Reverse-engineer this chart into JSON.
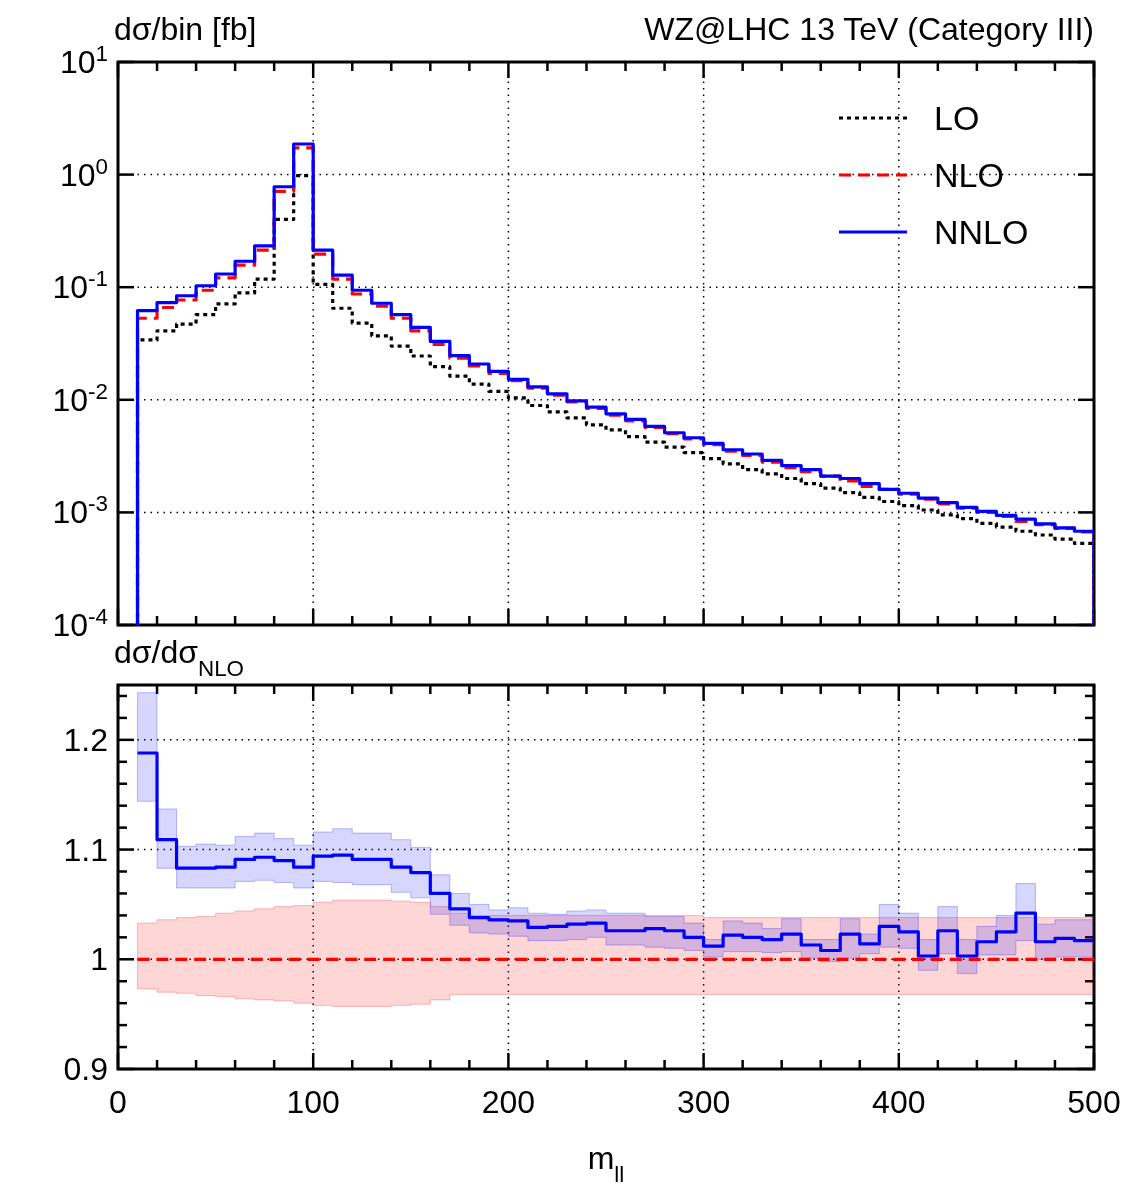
{
  "chart_data": [
    {
      "type": "histogram",
      "title": "WZ@LHC 13 TeV (Category III)",
      "ylabel": "dσ/bin [fb]",
      "log": "y",
      "grid": true,
      "legend": "top right",
      "tick_labels": "y",
      "bins": [
        10,
        20,
        30,
        40,
        50,
        60,
        70,
        80,
        90,
        100,
        110,
        120,
        130,
        140,
        150,
        160,
        170,
        180,
        190,
        200,
        210,
        220,
        230,
        240,
        250,
        260,
        270,
        280,
        290,
        300,
        310,
        320,
        330,
        340,
        350,
        360,
        370,
        380,
        390,
        400,
        410,
        420,
        430,
        440,
        450,
        460,
        470,
        480,
        490,
        500
      ],
      "xlim": [
        0,
        500
      ],
      "xticks": [
        0,
        {
          "value": 20,
          "label": null
        },
        {
          "value": 40,
          "label": null
        },
        {
          "value": 60,
          "label": null
        },
        {
          "value": 80,
          "label": null
        },
        100,
        {
          "value": 120,
          "label": null
        },
        {
          "value": 140,
          "label": null
        },
        {
          "value": 160,
          "label": null
        },
        {
          "value": 180,
          "label": null
        },
        200,
        {
          "value": 220,
          "label": null
        },
        {
          "value": 240,
          "label": null
        },
        {
          "value": 260,
          "label": null
        },
        {
          "value": 280,
          "label": null
        },
        300,
        {
          "value": 320,
          "label": null
        },
        {
          "value": 340,
          "label": null
        },
        {
          "value": 360,
          "label": null
        },
        {
          "value": 380,
          "label": null
        },
        400,
        {
          "value": 420,
          "label": null
        },
        {
          "value": 440,
          "label": null
        },
        {
          "value": 460,
          "label": null
        },
        {
          "value": 480,
          "label": null
        },
        500
      ],
      "ylim": [
        0.0001,
        10
      ],
      "yticks": [
        {
          "value": 0.0001,
          "label": "10$^{-4}$"
        },
        {
          "value": 0.001,
          "label": "10$^{-3}$"
        },
        {
          "value": 0.01,
          "label": "10$^{-2}$"
        },
        {
          "value": 0.1,
          "label": "10$^{-1}$"
        },
        {
          "value": 1,
          "label": "10$^{0}$"
        },
        {
          "value": 10,
          "label": "10$^{1}$"
        }
      ],
      "series": [
        {
          "name": "LO",
          "color": "#000000",
          "line_style": "dotted",
          "values": [
            0.034,
            0.041,
            0.047,
            0.057,
            0.071,
            0.089,
            0.118,
            0.4,
            0.98,
            0.106,
            0.065,
            0.048,
            0.037,
            0.03,
            0.0245,
            0.0197,
            0.0162,
            0.0138,
            0.0119,
            0.0104,
            0.0089,
            0.0078,
            0.0069,
            0.006,
            0.0054,
            0.0047,
            0.0042,
            0.0038,
            0.0034,
            0.003,
            0.0027,
            0.0024,
            0.0022,
            0.002,
            0.0018,
            0.00164,
            0.0015,
            0.00136,
            0.00125,
            0.00115,
            0.00105,
            0.00095,
            0.00088,
            0.0008,
            0.00074,
            0.00068,
            0.00063,
            0.00058,
            0.00053
          ]
        },
        {
          "name": "NLO",
          "color": "#ff0000",
          "line_style": "dashed",
          "values": [
            0.053,
            0.066,
            0.077,
            0.094,
            0.121,
            0.157,
            0.213,
            0.71,
            1.73,
            0.197,
            0.118,
            0.087,
            0.068,
            0.053,
            0.041,
            0.031,
            0.0234,
            0.02,
            0.0172,
            0.0148,
            0.0127,
            0.011,
            0.0096,
            0.0084,
            0.0073,
            0.0065,
            0.0057,
            0.005,
            0.0045,
            0.004,
            0.0035,
            0.0032,
            0.0028,
            0.0025,
            0.0023,
            0.0021,
            0.0019,
            0.0017,
            0.0016,
            0.00145,
            0.00131,
            0.00119,
            0.00109,
            0.001,
            0.00092,
            0.00083,
            0.00078,
            0.00072,
            0.00067
          ]
        },
        {
          "name": "NNLO",
          "color": "#0000ff",
          "line_style": "solid",
          "values": [
            0.062,
            0.073,
            0.084,
            0.103,
            0.131,
            0.17,
            0.233,
            0.78,
            1.87,
            0.213,
            0.128,
            0.094,
            0.072,
            0.057,
            0.044,
            0.033,
            0.0247,
            0.0208,
            0.0179,
            0.0152,
            0.013,
            0.0113,
            0.0098,
            0.0086,
            0.0075,
            0.0067,
            0.0058,
            0.0051,
            0.0046,
            0.0041,
            0.0036,
            0.0033,
            0.0029,
            0.0026,
            0.0024,
            0.0021,
            0.002,
            0.0018,
            0.0016,
            0.00148,
            0.00134,
            0.00122,
            0.00111,
            0.00102,
            0.00094,
            0.00087,
            0.00079,
            0.00073,
            0.00068
          ]
        }
      ]
    },
    {
      "type": "step",
      "ylabel": "dσ/dσ$_{NLO}$",
      "xlabel": "m$_{ll}$",
      "grid": true,
      "x": [
        10,
        20,
        30,
        40,
        50,
        60,
        70,
        80,
        90,
        100,
        110,
        120,
        130,
        140,
        150,
        160,
        170,
        180,
        190,
        200,
        210,
        220,
        230,
        240,
        250,
        260,
        270,
        280,
        290,
        300,
        310,
        320,
        330,
        340,
        350,
        360,
        370,
        380,
        390,
        400,
        410,
        420,
        430,
        440,
        450,
        460,
        470,
        480,
        490,
        500
      ],
      "xlim": [
        0,
        500
      ],
      "xticks": [
        0,
        {
          "value": 20,
          "label": null
        },
        {
          "value": 40,
          "label": null
        },
        {
          "value": 60,
          "label": null
        },
        {
          "value": 80,
          "label": null
        },
        100,
        {
          "value": 120,
          "label": null
        },
        {
          "value": 140,
          "label": null
        },
        {
          "value": 160,
          "label": null
        },
        {
          "value": 180,
          "label": null
        },
        200,
        {
          "value": 220,
          "label": null
        },
        {
          "value": 240,
          "label": null
        },
        {
          "value": 260,
          "label": null
        },
        {
          "value": 280,
          "label": null
        },
        300,
        {
          "value": 320,
          "label": null
        },
        {
          "value": 340,
          "label": null
        },
        {
          "value": 360,
          "label": null
        },
        {
          "value": 380,
          "label": null
        },
        400,
        {
          "value": 420,
          "label": null
        },
        {
          "value": 440,
          "label": null
        },
        {
          "value": 460,
          "label": null
        },
        {
          "value": 480,
          "label": null
        },
        500
      ],
      "ylim": [
        0.9,
        1.25
      ],
      "yticks": [
        0.9,
        {
          "value": 0.92,
          "label": null
        },
        {
          "value": 0.94,
          "label": null
        },
        {
          "value": 0.96,
          "label": null
        },
        {
          "value": 0.98,
          "label": null
        },
        1,
        {
          "value": 1.02,
          "label": null
        },
        {
          "value": 1.04,
          "label": null
        },
        {
          "value": 1.06,
          "label": null
        },
        {
          "value": 1.08,
          "label": null
        },
        1.1,
        {
          "value": 1.12,
          "label": null
        },
        {
          "value": 1.14,
          "label": null
        },
        {
          "value": 1.16,
          "label": null
        },
        {
          "value": 1.18,
          "label": null
        },
        1.2,
        {
          "value": 1.22,
          "label": null
        },
        {
          "value": 1.24,
          "label": null
        }
      ],
      "series": [
        {
          "color": "#ff0000",
          "line_style": "dashed",
          "values": [
            1,
            1,
            1,
            1,
            1,
            1,
            1,
            1,
            1,
            1,
            1,
            1,
            1,
            1,
            1,
            1,
            1,
            1,
            1,
            1,
            1,
            1,
            1,
            1,
            1,
            1,
            1,
            1,
            1,
            1,
            1,
            1,
            1,
            1,
            1,
            1,
            1,
            1,
            1,
            1,
            1,
            1,
            1,
            1,
            1,
            1,
            1,
            1,
            1,
            1
          ],
          "upper": [
            1.033,
            1.036,
            1.038,
            1.039,
            1.042,
            1.044,
            1.046,
            1.048,
            1.049,
            1.052,
            1.054,
            1.054,
            1.054,
            1.053,
            1.052,
            1.048,
            1.042,
            1.04,
            1.04,
            1.04,
            1.04,
            1.04,
            1.04,
            1.04,
            1.04,
            1.04,
            1.04,
            1.04,
            1.04,
            1.038,
            1.038,
            1.038,
            1.038,
            1.038,
            1.038,
            1.038,
            1.038,
            1.038,
            1.038,
            1.038,
            1.038,
            1.038,
            1.038,
            1.038,
            1.038,
            1.038,
            1.038,
            1.038,
            1.038,
            1.038
          ],
          "lower": [
            0.973,
            0.97,
            0.969,
            0.967,
            0.966,
            0.964,
            0.963,
            0.962,
            0.96,
            0.958,
            0.957,
            0.957,
            0.957,
            0.958,
            0.959,
            0.963,
            0.968,
            0.968,
            0.968,
            0.968,
            0.968,
            0.968,
            0.968,
            0.968,
            0.968,
            0.968,
            0.968,
            0.968,
            0.968,
            0.968,
            0.968,
            0.968,
            0.968,
            0.968,
            0.968,
            0.968,
            0.968,
            0.968,
            0.968,
            0.968,
            0.968,
            0.968,
            0.968,
            0.968,
            0.968,
            0.968,
            0.968,
            0.968,
            0.968,
            0.968
          ]
        },
        {
          "color": "#0000ff",
          "line_style": "solid",
          "values": [
            1.188,
            1.109,
            1.083,
            1.083,
            1.084,
            1.091,
            1.093,
            1.09,
            1.084,
            1.094,
            1.095,
            1.091,
            1.091,
            1.084,
            1.079,
            1.06,
            1.046,
            1.038,
            1.036,
            1.035,
            1.029,
            1.03,
            1.032,
            1.033,
            1.026,
            1.026,
            1.028,
            1.026,
            1.02,
            1.012,
            1.022,
            1.02,
            1.018,
            1.023,
            1.013,
            1.008,
            1.023,
            1.014,
            1.03,
            1.025,
            1.003,
            1.026,
            1.003,
            1.016,
            1.025,
            1.042,
            1.016,
            1.019,
            1.017,
            1.017
          ],
          "upper": [
            1.243,
            1.137,
            1.103,
            1.105,
            1.104,
            1.112,
            1.115,
            1.11,
            1.104,
            1.116,
            1.119,
            1.115,
            1.115,
            1.109,
            1.102,
            1.077,
            1.06,
            1.05,
            1.045,
            1.047,
            1.042,
            1.041,
            1.044,
            1.045,
            1.042,
            1.042,
            1.039,
            1.039,
            1.033,
            1.018,
            1.035,
            1.033,
            1.028,
            1.037,
            1.018,
            1.018,
            1.037,
            1.023,
            1.05,
            1.042,
            1.018,
            1.048,
            1.018,
            1.03,
            1.04,
            1.069,
            1.032,
            1.036,
            1.036,
            1.036
          ],
          "lower": [
            1.144,
            1.083,
            1.065,
            1.065,
            1.065,
            1.071,
            1.072,
            1.07,
            1.065,
            1.071,
            1.07,
            1.068,
            1.068,
            1.061,
            1.056,
            1.041,
            1.031,
            1.024,
            1.023,
            1.021,
            1.017,
            1.017,
            1.018,
            1.02,
            1.013,
            1.013,
            1.011,
            1.01,
            1.008,
            1.002,
            1.007,
            1.007,
            1.006,
            1.007,
            1.001,
            0.998,
            1.001,
            1.005,
            1.011,
            1.01,
            0.99,
            1.005,
            0.987,
            1.004,
            1.004,
            1.017,
            1.0,
            1.002,
            1.002,
            1.002
          ]
        }
      ]
    }
  ]
}
